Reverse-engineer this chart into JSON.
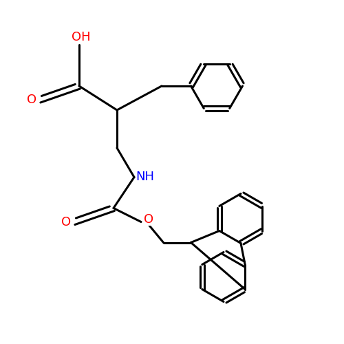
{
  "bg": "#ffffff",
  "bond_color": "#000000",
  "O_color": "#ff0000",
  "N_color": "#0000ff",
  "lw": 2.2,
  "fontsize": 13,
  "xlim": [
    0,
    10
  ],
  "ylim": [
    0,
    10
  ]
}
